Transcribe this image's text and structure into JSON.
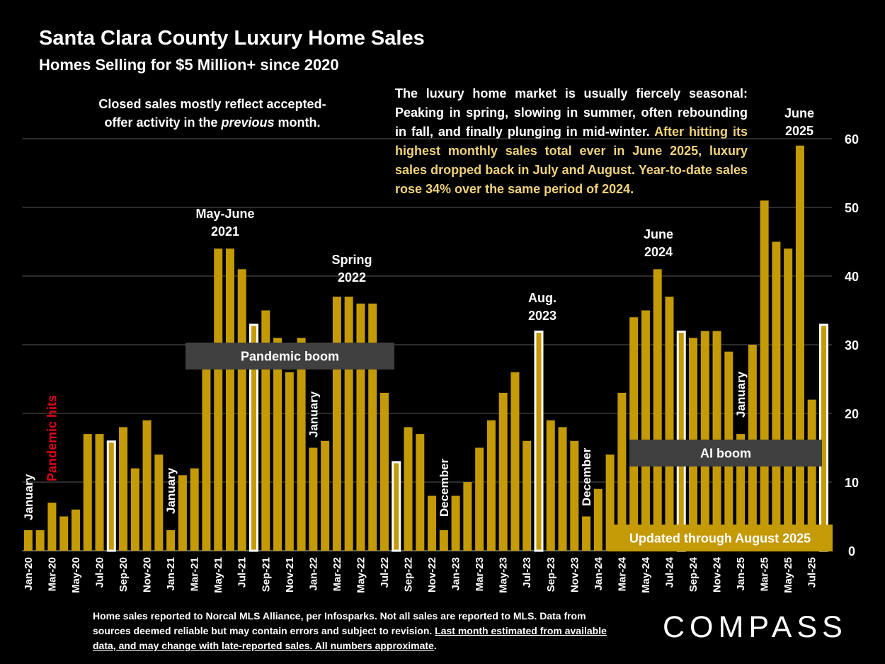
{
  "header": {
    "title": "Santa Clara County Luxury Home Sales",
    "subtitle": "Homes Selling for $5 Million+ since 2020"
  },
  "notes": {
    "left_line1": "Closed sales mostly reflect accepted-",
    "left_line2_pre": "offer activity in the ",
    "left_line2_em": "previous",
    "left_line2_post": " month.",
    "right_white": "The luxury home market is usually fiercely seasonal: Peaking in spring, slowing in summer, often rebounding in fall, and finally plunging in mid-winter.",
    "right_gold": "After hitting its highest monthly sales total ever in June 2025, luxury sales dropped back in July and August. Year-to-date sales rose 34% over the same period of 2024."
  },
  "footer": {
    "plain": "Home sales reported to Norcal MLS Alliance, per Infosparks. Not all sales are reported to MLS. Data from sources deemed reliable but may contain errors and subject to revision.",
    "underlined": "Last month estimated from available data, and may change with late-reported sales. All numbers approximate",
    "end": "."
  },
  "brand": {
    "logo": "COMPASS"
  },
  "colors": {
    "bar": "#c49a06",
    "highlight": "#ffffff",
    "background": "#000000",
    "box": "#404040",
    "accent_red": "#e0001b",
    "gold_text": "#f0d27a"
  },
  "chart_data": {
    "type": "bar",
    "title": "Santa Clara County Luxury Home Sales",
    "ylabel": "",
    "xlabel": "",
    "ylim": [
      0,
      60
    ],
    "yticks": [
      0,
      10,
      20,
      30,
      40,
      50,
      60
    ],
    "yaxis_side": "right",
    "grid": true,
    "categories": [
      "Jan-20",
      "Feb-20",
      "Mar-20",
      "Apr-20",
      "May-20",
      "Jun-20",
      "Jul-20",
      "Aug-20",
      "Sep-20",
      "Oct-20",
      "Nov-20",
      "Dec-20",
      "Jan-21",
      "Feb-21",
      "Mar-21",
      "Apr-21",
      "May-21",
      "Jun-21",
      "Jul-21",
      "Aug-21",
      "Sep-21",
      "Oct-21",
      "Nov-21",
      "Dec-21",
      "Jan-22",
      "Feb-22",
      "Mar-22",
      "Apr-22",
      "May-22",
      "Jun-22",
      "Jul-22",
      "Aug-22",
      "Sep-22",
      "Oct-22",
      "Nov-22",
      "Dec-22",
      "Jan-23",
      "Feb-23",
      "Mar-23",
      "Apr-23",
      "May-23",
      "Jun-23",
      "Jul-23",
      "Aug-23",
      "Sep-23",
      "Oct-23",
      "Nov-23",
      "Dec-23",
      "Jan-24",
      "Feb-24",
      "Mar-24",
      "Apr-24",
      "May-24",
      "Jun-24",
      "Jul-24",
      "Aug-24",
      "Sep-24",
      "Oct-24",
      "Nov-24",
      "Dec-24",
      "Jan-25",
      "Feb-25",
      "Mar-25",
      "Apr-25",
      "May-25",
      "Jun-25",
      "Jul-25",
      "Aug-25"
    ],
    "values": [
      3,
      3,
      7,
      5,
      6,
      17,
      17,
      16,
      18,
      12,
      19,
      14,
      3,
      11,
      12,
      30,
      44,
      44,
      41,
      33,
      35,
      31,
      26,
      31,
      15,
      16,
      37,
      37,
      36,
      36,
      23,
      13,
      18,
      17,
      8,
      3,
      8,
      10,
      15,
      19,
      23,
      26,
      16,
      32,
      19,
      18,
      16,
      5,
      9,
      14,
      23,
      34,
      35,
      41,
      37,
      32,
      31,
      32,
      32,
      29,
      17,
      30,
      51,
      45,
      44,
      59,
      22,
      33
    ],
    "highlighted": [
      "Aug-20",
      "Aug-21",
      "Aug-22",
      "Aug-23",
      "Aug-24",
      "Aug-25"
    ],
    "shown_tick_labels": [
      "Jan-20",
      "Mar-20",
      "May-20",
      "Jul-20",
      "Sep-20",
      "Nov-20",
      "Jan-21",
      "Mar-21",
      "May-21",
      "Jul-21",
      "Sep-21",
      "Nov-21",
      "Jan-22",
      "Mar-22",
      "May-22",
      "Jul-22",
      "Sep-22",
      "Nov-22",
      "Jan-23",
      "Mar-23",
      "May-23",
      "Jul-23",
      "Sep-23",
      "Nov-23",
      "Jan-24",
      "Mar-24",
      "May-24",
      "Jul-24",
      "Sep-24",
      "Nov-24",
      "Jan-25",
      "Mar-25",
      "May-25",
      "Jul-25"
    ],
    "annotations": [
      {
        "name": "annotation-january-2020",
        "text": "January",
        "vertical": true,
        "color": "#ffffff"
      },
      {
        "name": "annotation-pandemic-hits",
        "text": "Pandemic hits",
        "vertical": true,
        "color": "#e0001b"
      },
      {
        "name": "annotation-january-2021",
        "text": "January",
        "vertical": true,
        "color": "#ffffff"
      },
      {
        "name": "annotation-may-june-2021",
        "lines": [
          "May-June",
          "2021"
        ]
      },
      {
        "name": "annotation-january-2022",
        "text": "January",
        "vertical": true,
        "color": "#ffffff"
      },
      {
        "name": "annotation-spring-2022",
        "lines": [
          "Spring",
          "2022"
        ]
      },
      {
        "name": "annotation-december-2022",
        "text": "December",
        "vertical": true,
        "color": "#ffffff"
      },
      {
        "name": "annotation-aug-2023",
        "lines": [
          "Aug.",
          "2023"
        ]
      },
      {
        "name": "annotation-december-2023",
        "text": "December",
        "vertical": true,
        "color": "#ffffff"
      },
      {
        "name": "annotation-june-2024",
        "lines": [
          "June",
          "2024"
        ]
      },
      {
        "name": "annotation-january-2025",
        "text": "January",
        "vertical": true,
        "color": "#ffffff"
      },
      {
        "name": "annotation-june-2025",
        "lines": [
          "June",
          "2025"
        ]
      }
    ],
    "boxes": [
      {
        "name": "pandemic-boom-box",
        "text": "Pandemic boom",
        "style": "gray"
      },
      {
        "name": "ai-boom-box",
        "text": "AI boom",
        "style": "gray"
      },
      {
        "name": "updated-through-box",
        "text": "Updated through August 2025",
        "style": "gold"
      }
    ]
  }
}
